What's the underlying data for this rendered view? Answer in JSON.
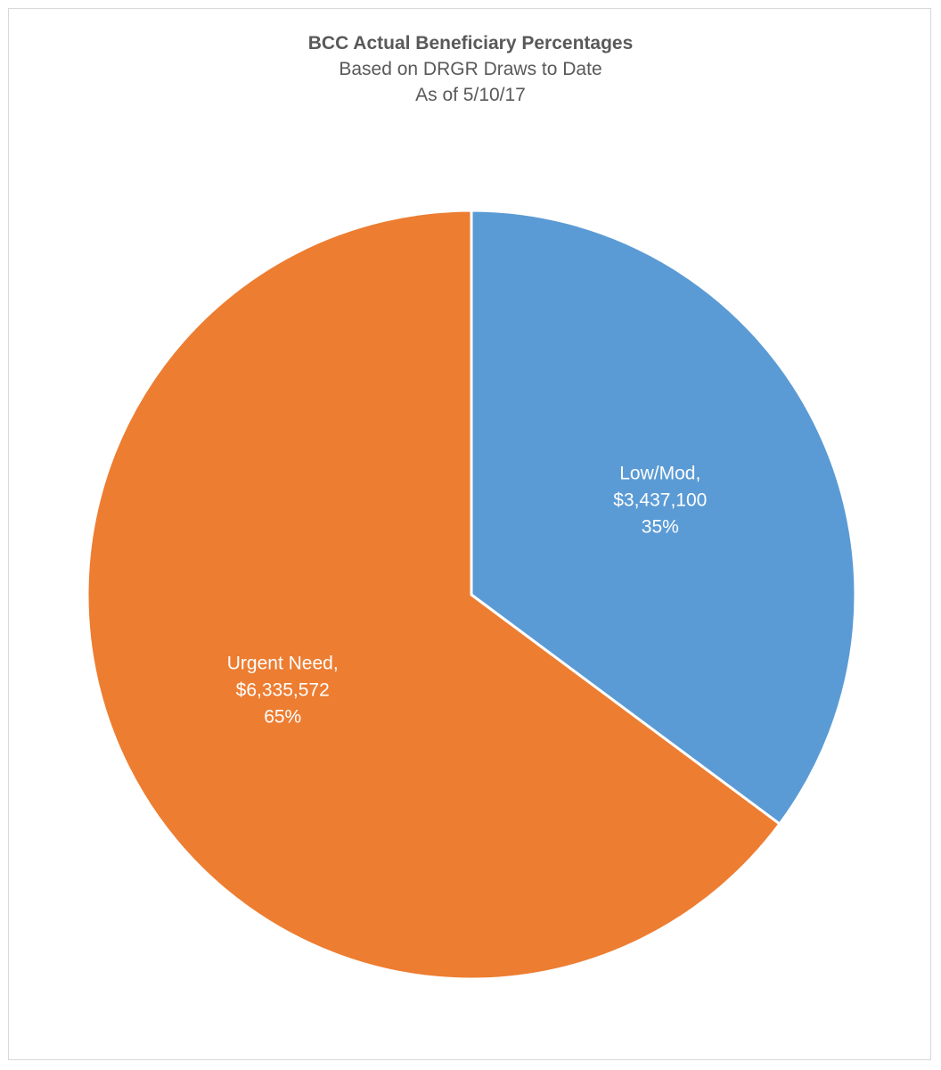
{
  "chart_data": {
    "type": "pie",
    "title": "BCC Actual Beneficiary Percentages",
    "subtitle_lines": [
      "Based on DRGR Draws to Date",
      "As of 5/10/17"
    ],
    "slices": [
      {
        "name": "Low/Mod",
        "value": 3437100,
        "value_label": "$3,437,100",
        "percent_label": "35%",
        "name_label": "Low/Mod,",
        "color": "#5b9bd5"
      },
      {
        "name": "Urgent Need",
        "value": 6335572,
        "value_label": "$6,335,572",
        "percent_label": "65%",
        "name_label": "Urgent Need,",
        "color": "#ed7d31"
      }
    ],
    "start_angle_deg": 0,
    "direction": "clockwise",
    "legend": "none",
    "data_labels": "inside"
  }
}
